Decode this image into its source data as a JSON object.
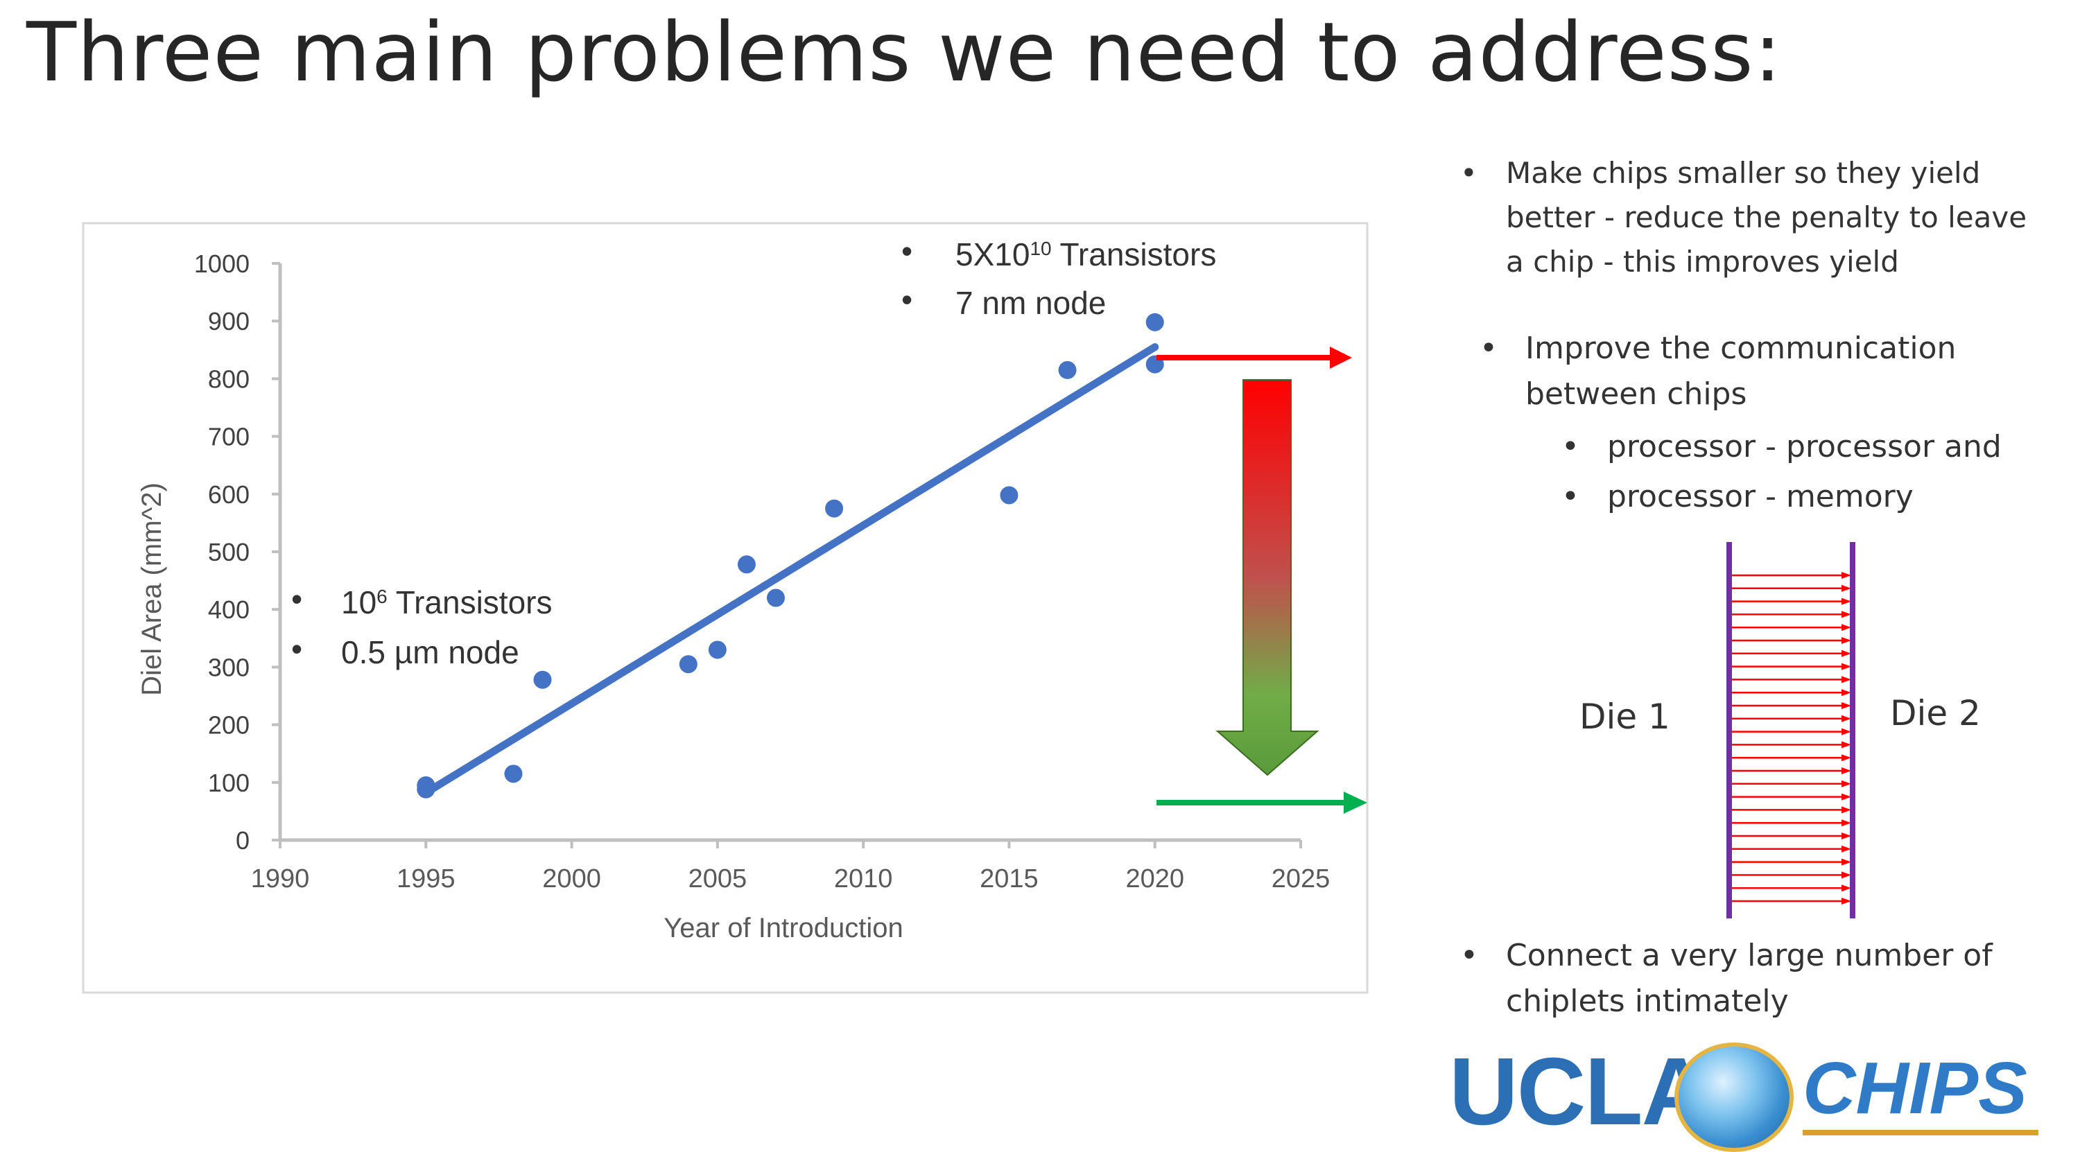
{
  "slide": {
    "title": "Three main problems we need to address:"
  },
  "chart_data": {
    "type": "scatter",
    "xlabel": "Year of Introduction",
    "ylabel": "Diel Area (mm^2)",
    "xlim": [
      1990,
      2025
    ],
    "ylim": [
      0,
      1000
    ],
    "x_ticks": [
      1990,
      1995,
      2000,
      2005,
      2010,
      2015,
      2020,
      2025
    ],
    "y_ticks": [
      0,
      100,
      200,
      300,
      400,
      500,
      600,
      700,
      800,
      900,
      1000
    ],
    "series": [
      {
        "name": "data points",
        "points": [
          [
            1995,
            88
          ],
          [
            1995,
            95
          ],
          [
            1998,
            115
          ],
          [
            1999,
            278
          ],
          [
            2004,
            305
          ],
          [
            2005,
            330
          ],
          [
            2006,
            478
          ],
          [
            2007,
            420
          ],
          [
            2009,
            575
          ],
          [
            2015,
            598
          ],
          [
            2017,
            815
          ],
          [
            2020,
            825
          ],
          [
            2020,
            898
          ]
        ]
      }
    ],
    "trendline": {
      "from": [
        1995,
        82
      ],
      "to": [
        2020,
        855
      ]
    },
    "annotations": {
      "left": [
        "10",
        "6",
        " Transistors",
        "0.5 µm node"
      ],
      "right": [
        "5X10",
        "10",
        " Transistors",
        "7 nm node"
      ]
    },
    "colors": {
      "points": "#4472c4",
      "trendline": "#4472c4",
      "axis": "#bfbfbf",
      "text": "#595959",
      "red_arrow": "#ff0000",
      "green_arrow": "#00b050"
    }
  },
  "bullets": {
    "b1": [
      "Make chips smaller so they yield",
      "better - reduce the penalty to leave",
      "a chip - this improves yield"
    ],
    "b2": [
      "Improve the communication",
      "between chips"
    ],
    "b2_sub": [
      "processor - processor and",
      "processor - memory"
    ],
    "b3": [
      "Connect a very large number of",
      "chiplets intimately"
    ],
    "bullet_char": "•"
  },
  "die_diagram": {
    "left_label": "Die 1",
    "right_label": "Die 2",
    "line_color": "#7030a0",
    "link_color": "#ff0000",
    "link_count": 26
  },
  "logo": {
    "left": "UCLA",
    "right": "CHIPS"
  }
}
